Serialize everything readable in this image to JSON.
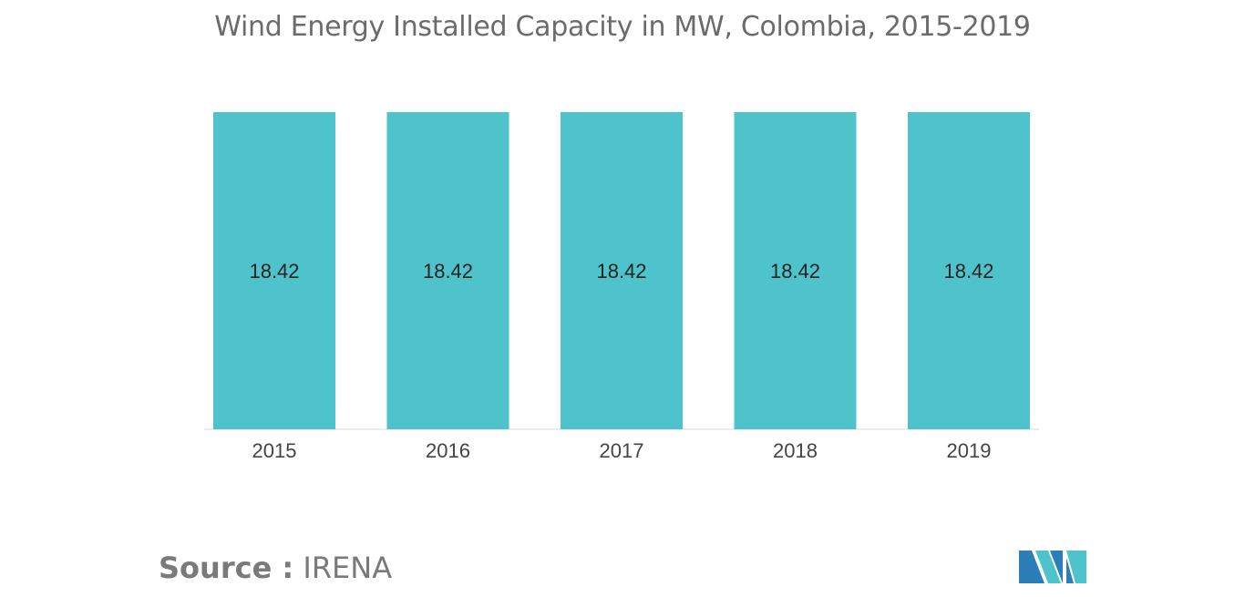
{
  "chart_data": {
    "type": "bar",
    "title": "Wind Energy Installed Capacity in MW, Colombia, 2015-2019",
    "categories": [
      "2015",
      "2016",
      "2017",
      "2018",
      "2019"
    ],
    "values": [
      18.42,
      18.42,
      18.42,
      18.42,
      18.42
    ],
    "data_labels": [
      "18.42",
      "18.42",
      "18.42",
      "18.42",
      "18.42"
    ],
    "xlabel": "",
    "ylabel": "",
    "ylim": [
      0,
      18.42
    ],
    "grid": false,
    "legend": "none",
    "bar_color": "#4fc3cb"
  },
  "source": {
    "prefix": "Source :",
    "name": "IRENA"
  },
  "logo": {
    "icon": "mordor-intelligence-logo-icon",
    "colors": [
      "#2b7fb6",
      "#4fc3cb"
    ]
  }
}
